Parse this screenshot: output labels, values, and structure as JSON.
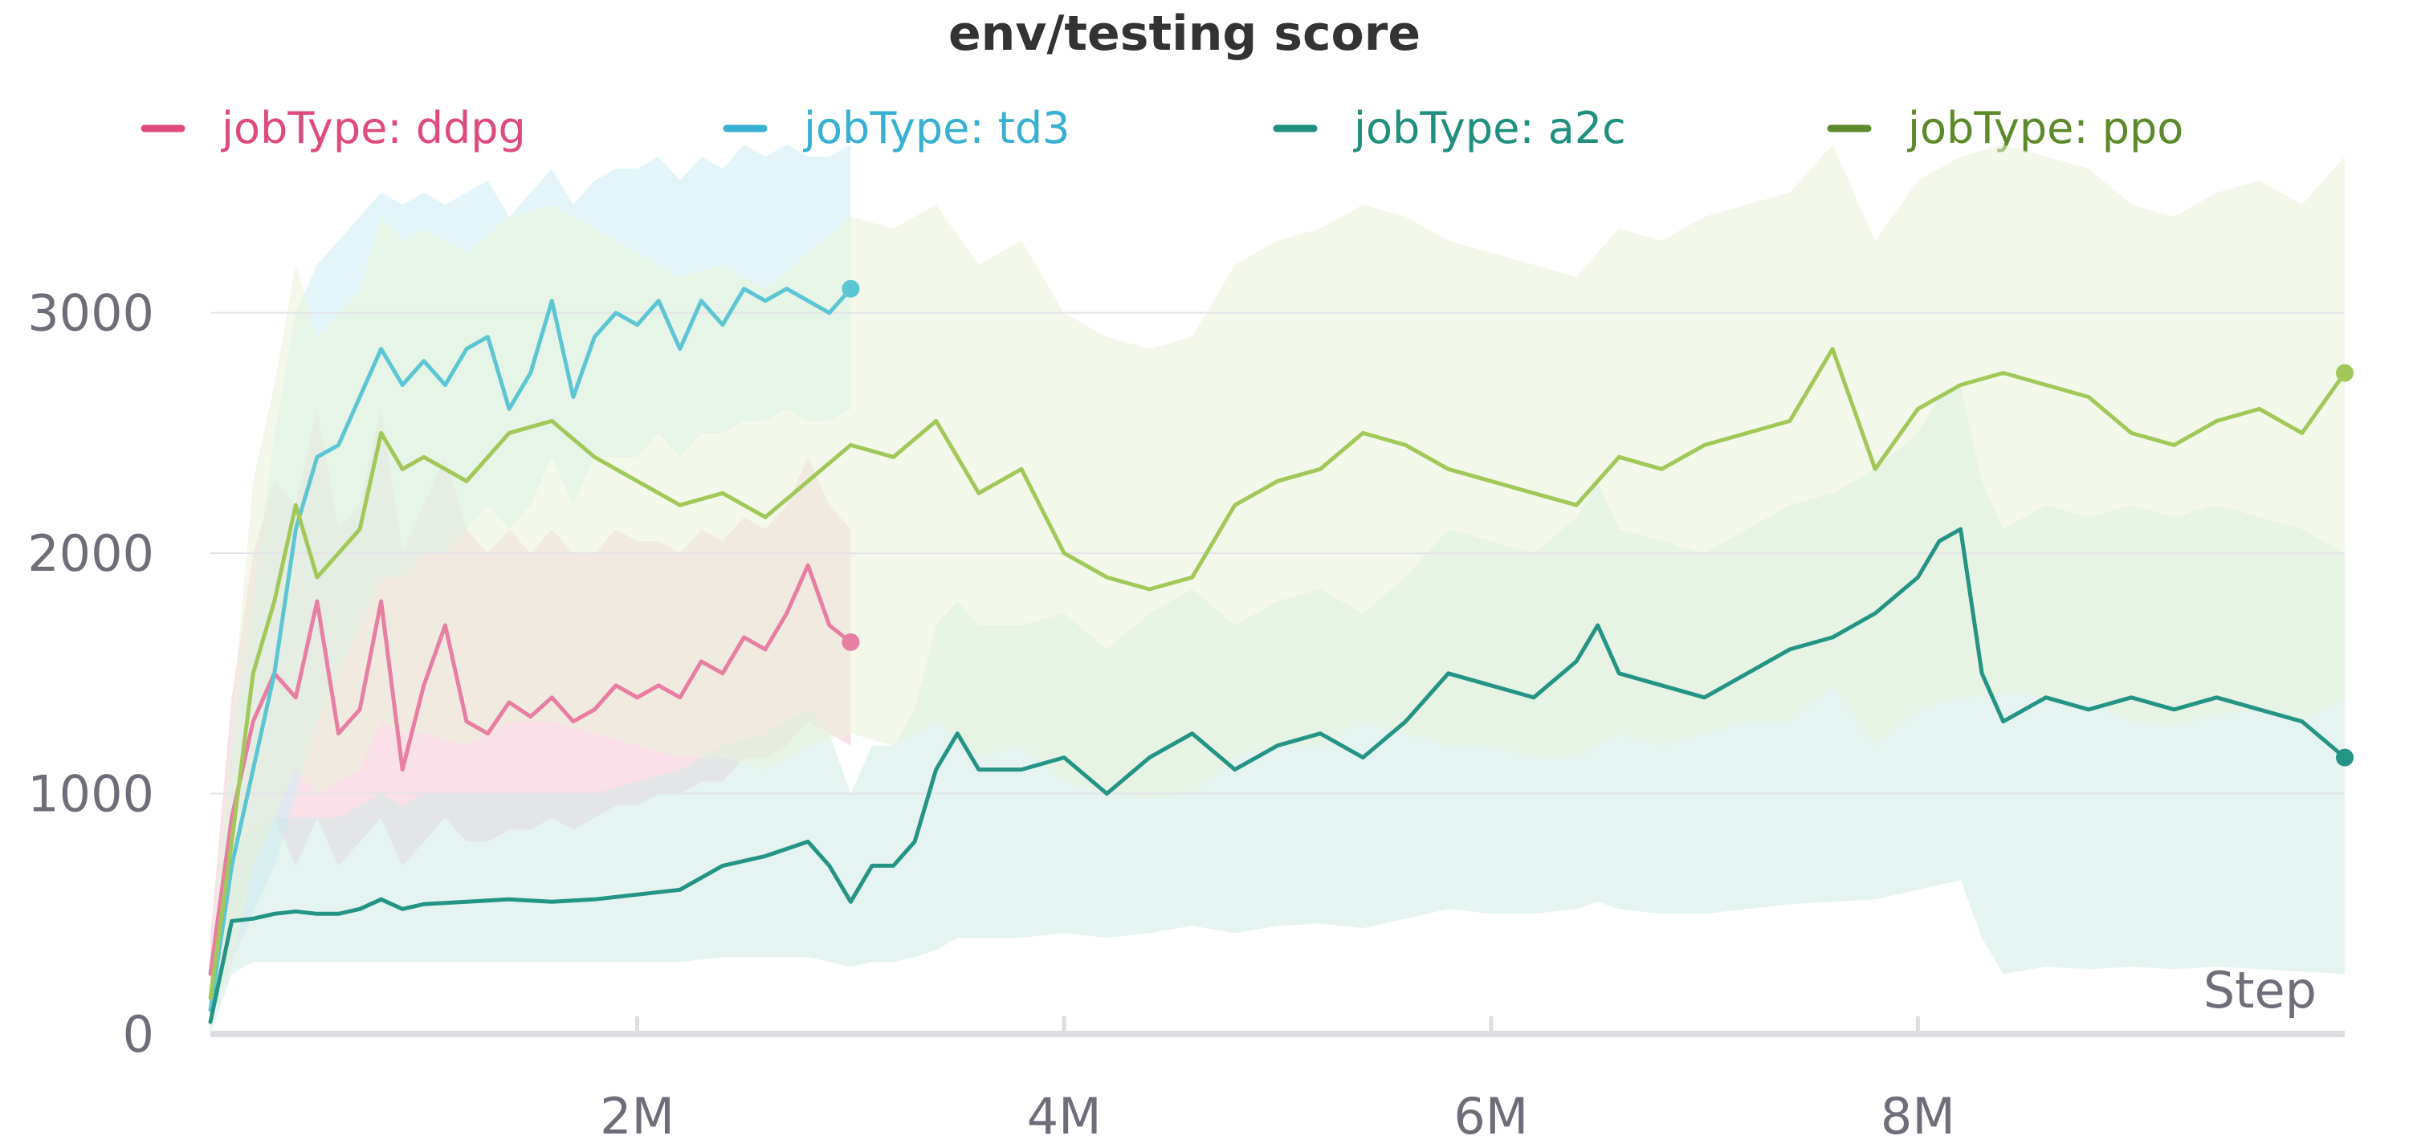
{
  "chart_data": {
    "type": "line",
    "title": "env/testing score",
    "xlabel": "Step",
    "ylabel": "",
    "xlim": [
      0,
      10000000
    ],
    "ylim": [
      0,
      3600
    ],
    "x_ticks": [
      {
        "value": 2000000,
        "label": "2M"
      },
      {
        "value": 4000000,
        "label": "4M"
      },
      {
        "value": 6000000,
        "label": "6M"
      },
      {
        "value": 8000000,
        "label": "8M"
      }
    ],
    "y_ticks": [
      {
        "value": 0,
        "label": "0"
      },
      {
        "value": 1000,
        "label": "1000"
      },
      {
        "value": 2000,
        "label": "2000"
      },
      {
        "value": 3000,
        "label": "3000"
      }
    ],
    "grid": true,
    "legend_position": "top",
    "series": [
      {
        "name": "jobType: ddpg",
        "color": "#de4a7b",
        "line_color": "#e87ea3",
        "band_color": "#f6c6d7",
        "x": [
          0,
          100000,
          200000,
          300000,
          400000,
          500000,
          600000,
          700000,
          800000,
          900000,
          1000000,
          1100000,
          1200000,
          1300000,
          1400000,
          1500000,
          1600000,
          1700000,
          1800000,
          1900000,
          2000000,
          2100000,
          2200000,
          2300000,
          2400000,
          2500000,
          2600000,
          2700000,
          2800000,
          2900000,
          3000000
        ],
        "y": [
          250,
          900,
          1300,
          1500,
          1400,
          1800,
          1250,
          1350,
          1800,
          1100,
          1450,
          1700,
          1300,
          1250,
          1380,
          1320,
          1400,
          1300,
          1350,
          1450,
          1400,
          1450,
          1400,
          1550,
          1500,
          1650,
          1600,
          1750,
          1950,
          1700,
          1630
        ],
        "band_low": [
          150,
          400,
          700,
          900,
          700,
          900,
          700,
          800,
          900,
          700,
          800,
          900,
          800,
          800,
          850,
          850,
          900,
          850,
          900,
          950,
          950,
          1000,
          1000,
          1050,
          1050,
          1150,
          1150,
          1200,
          1300,
          1250,
          1200
        ],
        "band_high": [
          400,
          1400,
          2000,
          2300,
          2200,
          2600,
          2100,
          2200,
          2600,
          2000,
          2200,
          2400,
          2100,
          2000,
          2100,
          2000,
          2100,
          2000,
          2000,
          2100,
          2050,
          2050,
          2000,
          2100,
          2050,
          2150,
          2100,
          2200,
          2400,
          2200,
          2100
        ]
      },
      {
        "name": "jobType: td3",
        "color": "#37b0d1",
        "line_color": "#5cc6d4",
        "band_color": "#cdedf5",
        "x": [
          0,
          100000,
          200000,
          300000,
          400000,
          500000,
          600000,
          700000,
          800000,
          900000,
          1000000,
          1100000,
          1200000,
          1300000,
          1400000,
          1500000,
          1600000,
          1700000,
          1800000,
          1900000,
          2000000,
          2100000,
          2200000,
          2300000,
          2400000,
          2500000,
          2600000,
          2700000,
          2800000,
          2900000,
          3000000
        ],
        "y": [
          100,
          700,
          1100,
          1500,
          2100,
          2400,
          2450,
          2650,
          2850,
          2700,
          2800,
          2700,
          2850,
          2900,
          2600,
          2750,
          3050,
          2650,
          2900,
          3000,
          2950,
          3050,
          2850,
          3050,
          2950,
          3100,
          3050,
          3100,
          3050,
          3000,
          3100
        ],
        "band_low": [
          50,
          300,
          500,
          700,
          1000,
          1300,
          1500,
          1700,
          1900,
          1900,
          2000,
          2000,
          2100,
          2200,
          2100,
          2200,
          2400,
          2200,
          2400,
          2400,
          2400,
          2500,
          2400,
          2500,
          2500,
          2550,
          2550,
          2600,
          2550,
          2550,
          2600
        ],
        "band_high": [
          200,
          1200,
          1800,
          2500,
          3000,
          3200,
          3300,
          3400,
          3500,
          3450,
          3500,
          3450,
          3500,
          3550,
          3400,
          3500,
          3600,
          3450,
          3550,
          3600,
          3600,
          3650,
          3550,
          3650,
          3600,
          3700,
          3650,
          3700,
          3650,
          3650,
          3700
        ]
      },
      {
        "name": "jobType: a2c",
        "color": "#1f8f7e",
        "line_color": "#249584",
        "band_color": "#cfe9e5",
        "x": [
          0,
          100000,
          200000,
          300000,
          400000,
          500000,
          600000,
          700000,
          800000,
          900000,
          1000000,
          1200000,
          1400000,
          1600000,
          1800000,
          2000000,
          2200000,
          2400000,
          2600000,
          2800000,
          2900000,
          3000000,
          3100000,
          3200000,
          3300000,
          3400000,
          3500000,
          3600000,
          3800000,
          4000000,
          4200000,
          4400000,
          4600000,
          4800000,
          5000000,
          5200000,
          5400000,
          5600000,
          5800000,
          6000000,
          6200000,
          6400000,
          6500000,
          6600000,
          6800000,
          7000000,
          7200000,
          7400000,
          7600000,
          7800000,
          8000000,
          8100000,
          8200000,
          8300000,
          8400000,
          8600000,
          8800000,
          9000000,
          9200000,
          9400000,
          9600000,
          9800000,
          10000000
        ],
        "y": [
          50,
          470,
          480,
          500,
          510,
          500,
          500,
          520,
          560,
          520,
          540,
          550,
          560,
          550,
          560,
          580,
          600,
          700,
          740,
          800,
          700,
          550,
          700,
          700,
          800,
          1100,
          1250,
          1100,
          1100,
          1150,
          1000,
          1150,
          1250,
          1100,
          1200,
          1250,
          1150,
          1300,
          1500,
          1450,
          1400,
          1550,
          1700,
          1500,
          1450,
          1400,
          1500,
          1600,
          1650,
          1750,
          1900,
          2050,
          2100,
          1500,
          1300,
          1400,
          1350,
          1400,
          1350,
          1400,
          1350,
          1300,
          1150
        ],
        "band_low": [
          0,
          250,
          300,
          300,
          300,
          300,
          300,
          300,
          300,
          300,
          300,
          300,
          300,
          300,
          300,
          300,
          300,
          320,
          320,
          320,
          300,
          280,
          300,
          300,
          320,
          350,
          400,
          400,
          400,
          420,
          400,
          420,
          450,
          420,
          450,
          460,
          440,
          480,
          520,
          500,
          500,
          520,
          550,
          520,
          500,
          500,
          520,
          540,
          550,
          560,
          600,
          620,
          640,
          400,
          250,
          280,
          270,
          280,
          270,
          280,
          270,
          260,
          250
        ],
        "band_high": [
          150,
          800,
          850,
          900,
          900,
          900,
          900,
          950,
          1000,
          950,
          1000,
          1000,
          1000,
          1000,
          1000,
          1050,
          1100,
          1200,
          1250,
          1350,
          1250,
          1000,
          1200,
          1200,
          1350,
          1700,
          1800,
          1700,
          1700,
          1750,
          1600,
          1750,
          1850,
          1700,
          1800,
          1850,
          1750,
          1900,
          2100,
          2050,
          2000,
          2150,
          2300,
          2100,
          2050,
          2000,
          2100,
          2200,
          2250,
          2350,
          2500,
          2650,
          2700,
          2300,
          2100,
          2200,
          2150,
          2200,
          2150,
          2200,
          2150,
          2100,
          2000
        ]
      },
      {
        "name": "jobType: ppo",
        "color": "#5c8a2a",
        "line_color": "#a2c85a",
        "band_color": "#e9f3d9",
        "x": [
          0,
          100000,
          200000,
          300000,
          400000,
          500000,
          600000,
          700000,
          800000,
          900000,
          1000000,
          1200000,
          1400000,
          1600000,
          1800000,
          2000000,
          2200000,
          2400000,
          2600000,
          2800000,
          3000000,
          3200000,
          3400000,
          3600000,
          3800000,
          4000000,
          4200000,
          4400000,
          4600000,
          4800000,
          5000000,
          5200000,
          5400000,
          5600000,
          5800000,
          6000000,
          6200000,
          6400000,
          6600000,
          6800000,
          7000000,
          7200000,
          7400000,
          7600000,
          7800000,
          8000000,
          8200000,
          8400000,
          8600000,
          8800000,
          9000000,
          9200000,
          9400000,
          9600000,
          9800000,
          10000000
        ],
        "y": [
          150,
          800,
          1500,
          1800,
          2200,
          1900,
          2000,
          2100,
          2500,
          2350,
          2400,
          2300,
          2500,
          2550,
          2400,
          2300,
          2200,
          2250,
          2150,
          2300,
          2450,
          2400,
          2550,
          2250,
          2350,
          2000,
          1900,
          1850,
          1900,
          2200,
          2300,
          2350,
          2500,
          2450,
          2350,
          2300,
          2250,
          2200,
          2400,
          2350,
          2450,
          2500,
          2550,
          2850,
          2350,
          2600,
          2700,
          2750,
          2700,
          2650,
          2500,
          2450,
          2550,
          2600,
          2500,
          2750
        ],
        "band_low": [
          50,
          300,
          700,
          900,
          1100,
          1000,
          1050,
          1100,
          1300,
          1250,
          1250,
          1200,
          1300,
          1300,
          1250,
          1200,
          1150,
          1150,
          1100,
          1200,
          1250,
          1200,
          1300,
          1150,
          1200,
          1050,
          1000,
          980,
          1000,
          1150,
          1200,
          1200,
          1300,
          1250,
          1200,
          1200,
          1150,
          1150,
          1250,
          1200,
          1250,
          1300,
          1300,
          1450,
          1200,
          1350,
          1400,
          1420,
          1400,
          1380,
          1300,
          1280,
          1330,
          1350,
          1300,
          1400
        ],
        "band_high": [
          300,
          1300,
          2300,
          2700,
          3200,
          2900,
          3000,
          3100,
          3400,
          3300,
          3350,
          3250,
          3400,
          3450,
          3350,
          3250,
          3150,
          3200,
          3100,
          3250,
          3400,
          3350,
          3450,
          3200,
          3300,
          3000,
          2900,
          2850,
          2900,
          3200,
          3300,
          3350,
          3450,
          3400,
          3300,
          3250,
          3200,
          3150,
          3350,
          3300,
          3400,
          3450,
          3500,
          3700,
          3300,
          3550,
          3650,
          3700,
          3650,
          3600,
          3450,
          3400,
          3500,
          3550,
          3450,
          3650
        ]
      }
    ]
  }
}
